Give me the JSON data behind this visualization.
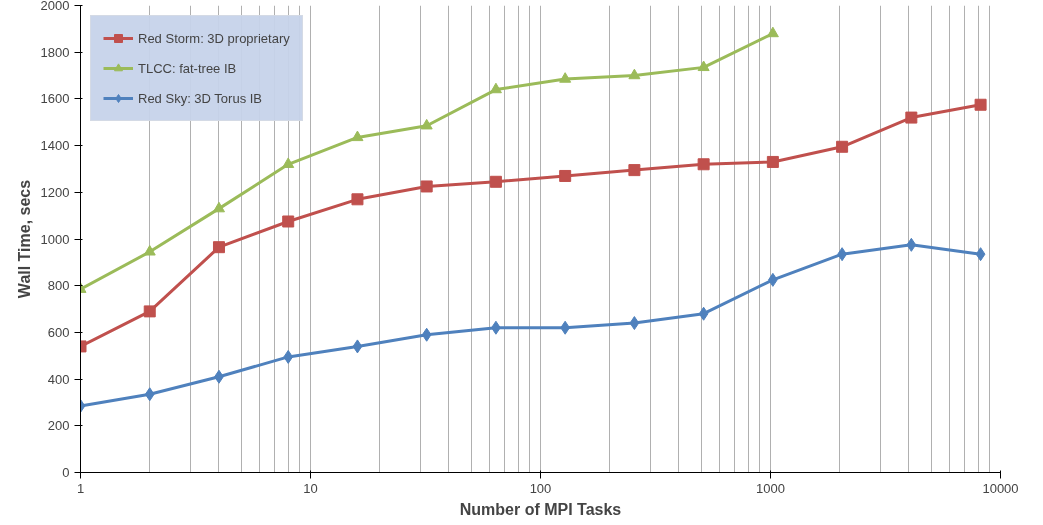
{
  "chart_data": {
    "type": "line",
    "xlabel": "Number of MPI Tasks",
    "ylabel": "Wall Time, secs",
    "log": "x",
    "grid": "x",
    "legend": "top left",
    "xlim": [
      1,
      10000
    ],
    "xticks": [
      1,
      10,
      100,
      1000,
      10000
    ],
    "ylim": [
      0,
      2000
    ],
    "yticks": [
      0,
      200,
      400,
      600,
      800,
      1000,
      1200,
      1400,
      1600,
      1800,
      2000
    ],
    "x": [
      1,
      2,
      4,
      8,
      16,
      32,
      64,
      128,
      256,
      512,
      1024,
      2048,
      4096,
      8192
    ],
    "series": [
      {
        "name": "Red Storm: 3D proprietary",
        "color": "#c0504d",
        "marker": "square",
        "values": [
          540,
          690,
          965,
          1075,
          1170,
          1225,
          1245,
          1270,
          1295,
          1320,
          1330,
          1395,
          1520,
          1575
        ]
      },
      {
        "name": "TLCC: fat-tree IB",
        "color": "#9bbb59",
        "marker": "triangle",
        "values": [
          785,
          945,
          1130,
          1320,
          1435,
          1485,
          1640,
          1685,
          1700,
          1735,
          1880,
          null,
          null,
          null
        ]
      },
      {
        "name": "Red Sky: 3D Torus IB",
        "color": "#4f81bd",
        "marker": "diamond",
        "values": [
          285,
          335,
          410,
          495,
          540,
          590,
          620,
          620,
          640,
          680,
          825,
          935,
          975,
          935
        ]
      }
    ]
  }
}
